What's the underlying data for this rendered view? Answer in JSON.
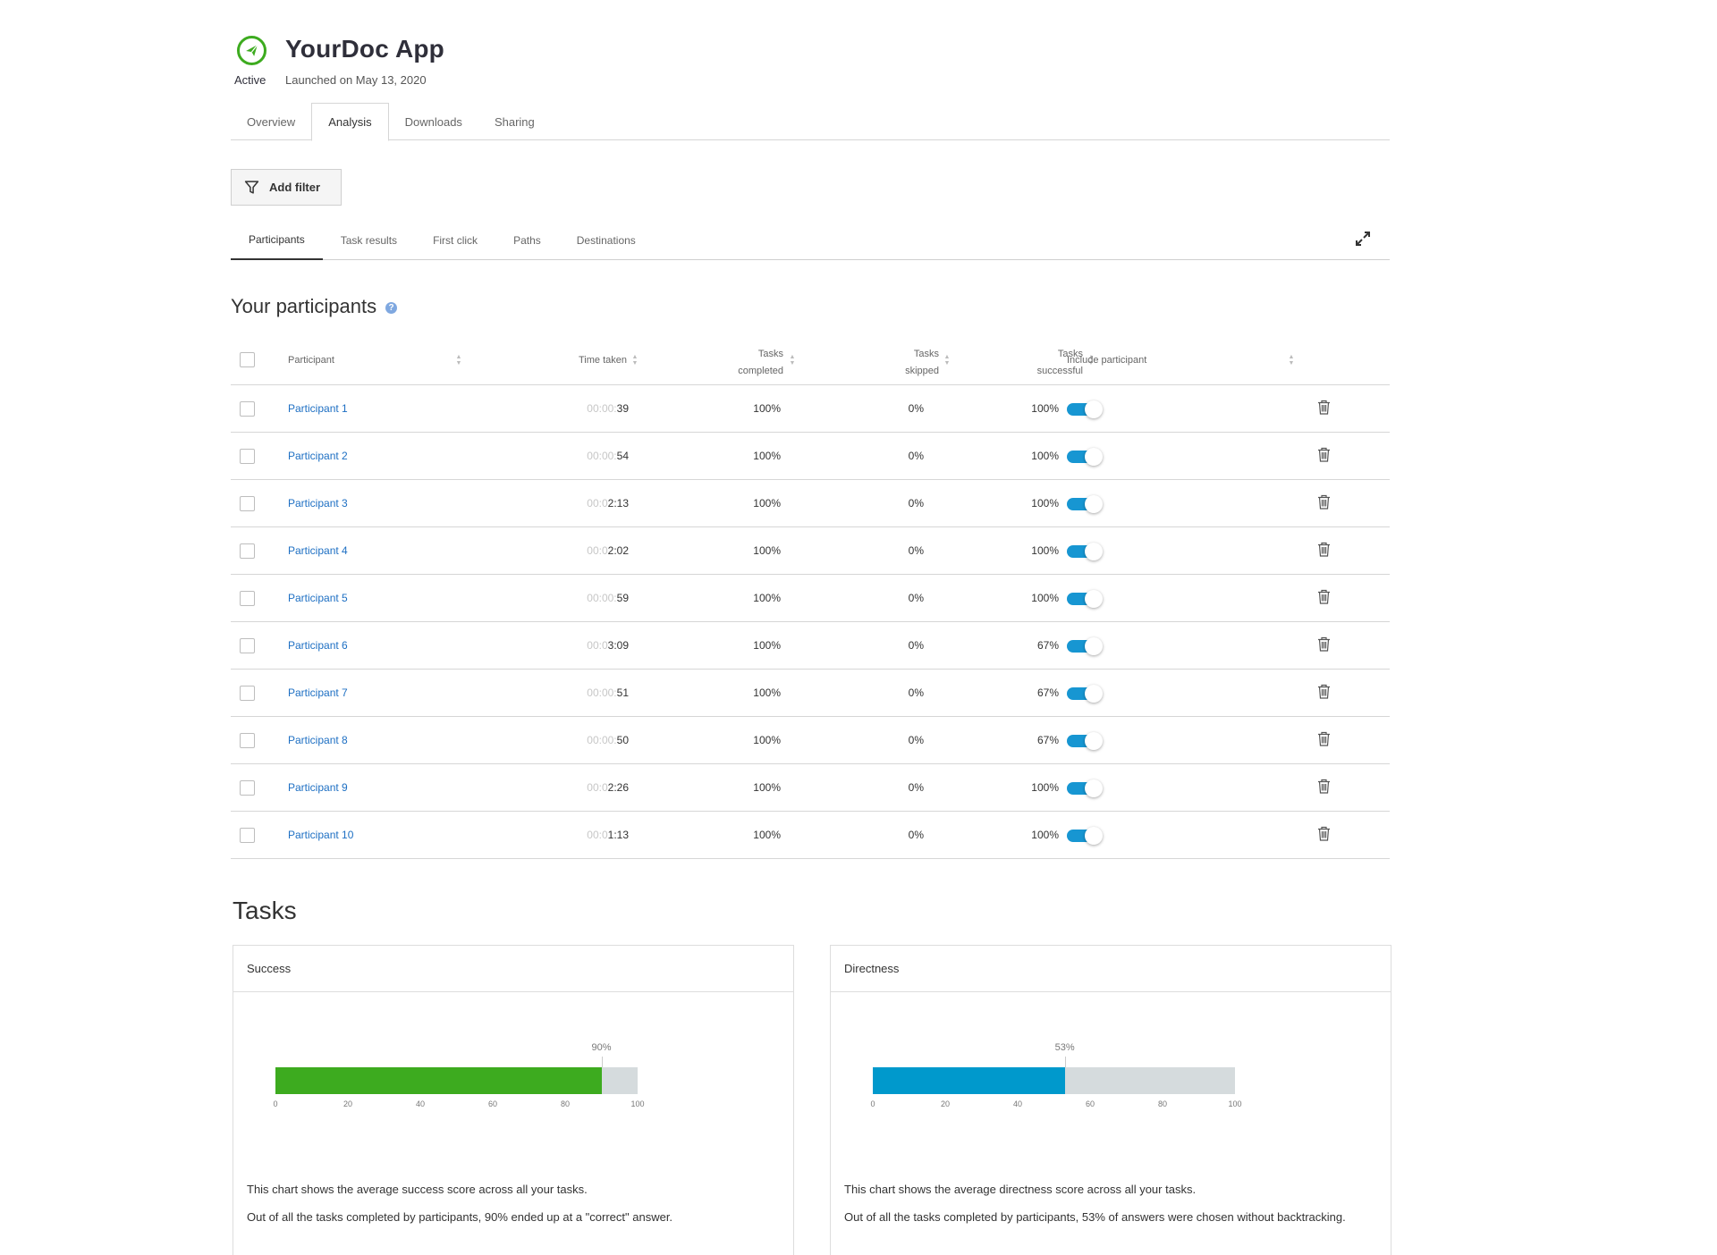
{
  "app": {
    "title": "YourDoc App",
    "status": "Active",
    "launched": "Launched on May 13, 2020",
    "accent_color": "#3dab1f"
  },
  "main_tabs": [
    {
      "label": "Overview",
      "active": false
    },
    {
      "label": "Analysis",
      "active": true
    },
    {
      "label": "Downloads",
      "active": false
    },
    {
      "label": "Sharing",
      "active": false
    }
  ],
  "filter": {
    "label": "Add filter",
    "icon": "filter-icon"
  },
  "sub_tabs": [
    {
      "label": "Participants",
      "active": true
    },
    {
      "label": "Task results",
      "active": false
    },
    {
      "label": "First click",
      "active": false
    },
    {
      "label": "Paths",
      "active": false
    },
    {
      "label": "Destinations",
      "active": false
    }
  ],
  "participants_section": {
    "title": "Your participants",
    "help_icon": "question-mark-icon"
  },
  "table": {
    "headers": {
      "participant": "Participant",
      "time": "Time taken",
      "completed_1": "Tasks",
      "completed_2": "completed",
      "skipped_1": "Tasks",
      "skipped_2": "skipped",
      "successful_1": "Tasks",
      "successful_2": "successful",
      "include": "Include participant"
    },
    "rows": [
      {
        "name": "Participant 1",
        "time_dim": "00:00:",
        "time": "39",
        "completed": "100%",
        "skipped": "0%",
        "successful": "100%",
        "included": true
      },
      {
        "name": "Participant 2",
        "time_dim": "00:00:",
        "time": "54",
        "completed": "100%",
        "skipped": "0%",
        "successful": "100%",
        "included": true
      },
      {
        "name": "Participant 3",
        "time_dim": "00:0",
        "time": "2:13",
        "completed": "100%",
        "skipped": "0%",
        "successful": "100%",
        "included": true
      },
      {
        "name": "Participant 4",
        "time_dim": "00:0",
        "time": "2:02",
        "completed": "100%",
        "skipped": "0%",
        "successful": "100%",
        "included": true
      },
      {
        "name": "Participant 5",
        "time_dim": "00:00:",
        "time": "59",
        "completed": "100%",
        "skipped": "0%",
        "successful": "100%",
        "included": true
      },
      {
        "name": "Participant 6",
        "time_dim": "00:0",
        "time": "3:09",
        "completed": "100%",
        "skipped": "0%",
        "successful": "67%",
        "included": true
      },
      {
        "name": "Participant 7",
        "time_dim": "00:00:",
        "time": "51",
        "completed": "100%",
        "skipped": "0%",
        "successful": "67%",
        "included": true
      },
      {
        "name": "Participant 8",
        "time_dim": "00:00:",
        "time": "50",
        "completed": "100%",
        "skipped": "0%",
        "successful": "67%",
        "included": true
      },
      {
        "name": "Participant 9",
        "time_dim": "00:0",
        "time": "2:26",
        "completed": "100%",
        "skipped": "0%",
        "successful": "100%",
        "included": true
      },
      {
        "name": "Participant 10",
        "time_dim": "00:0",
        "time": "1:13",
        "completed": "100%",
        "skipped": "0%",
        "successful": "100%",
        "included": true
      }
    ],
    "toggle_color": "#1796d2"
  },
  "tasks": {
    "title": "Tasks",
    "success": {
      "title": "Success",
      "value_label": "90%",
      "value": 90,
      "color": "#3dab1f",
      "desc1": "This chart shows the average success score across all your tasks.",
      "desc2": "Out of all the tasks completed by participants, 90% ended up at a \"correct\" answer."
    },
    "directness": {
      "title": "Directness",
      "value_label": "53%",
      "value": 53,
      "color": "#0099cc",
      "desc1": "This chart shows the average directness score across all your tasks.",
      "desc2": "Out of all the tasks completed by participants, 53% of answers were chosen without backtracking."
    },
    "ticks": [
      "0",
      "20",
      "40",
      "60",
      "80",
      "100"
    ]
  },
  "chart_data": [
    {
      "type": "bar",
      "title": "Success",
      "categories": [
        "Success"
      ],
      "values": [
        90
      ],
      "xlim": [
        0,
        100
      ],
      "ticks": [
        0,
        20,
        40,
        60,
        80,
        100
      ],
      "data_labels": [
        "90%"
      ]
    },
    {
      "type": "bar",
      "title": "Directness",
      "categories": [
        "Directness"
      ],
      "values": [
        53
      ],
      "xlim": [
        0,
        100
      ],
      "ticks": [
        0,
        20,
        40,
        60,
        80,
        100
      ],
      "data_labels": [
        "53%"
      ]
    }
  ]
}
